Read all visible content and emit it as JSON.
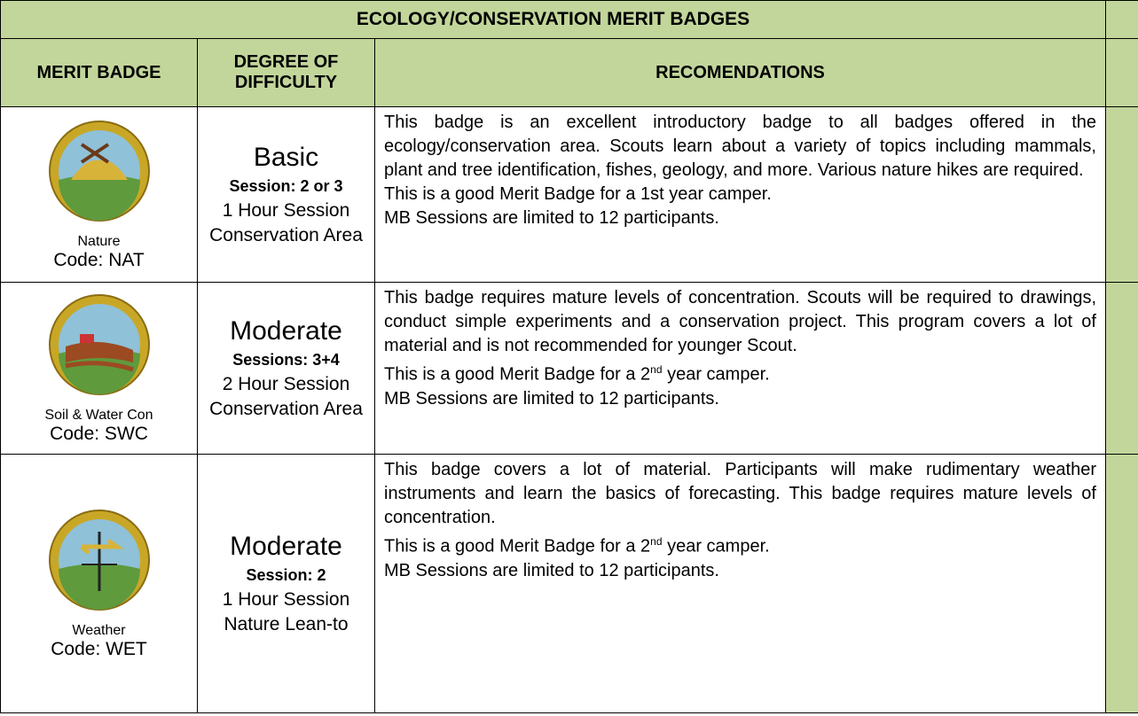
{
  "title": "ECOLOGY/CONSERVATION MERIT BADGES",
  "header": [
    "MERIT BADGE",
    "DEGREE OF DIFFICULTY",
    "RECOMENDATIONS"
  ],
  "rows": [
    {
      "badge": "Nature",
      "code": "Code: NAT",
      "difficulty": "Basic",
      "session": "Session: 2 or 3",
      "duration": "1 Hour Session",
      "location": "Conservation Area",
      "paragraph": "This badge is an excellent introductory badge to all badges offered in the ecology/conservation area. Scouts learn about a variety of topics including mammals, plant and tree identification, fishes, geology, and more. Various nature hikes are required.",
      "camper": [
        {
          "text": "This is a good Merit Badge for a 1st year camper."
        }
      ],
      "limit": "MB Sessions are limited to 12 participants."
    },
    {
      "badge": "Soil & Water Con",
      "code": "Code: SWC",
      "difficulty": "Moderate",
      "session": "Sessions: 3+4",
      "duration": "2 Hour Session",
      "location": "Conservation Area",
      "paragraph": "This badge requires mature levels of concentration. Scouts will be required to drawings, conduct simple experiments and a conservation project.  This program covers a lot of material and is not recommended for younger Scout.",
      "camper": [
        {
          "text": "This is a good Merit Badge for a 2"
        },
        {
          "text": "nd",
          "sup": true
        },
        {
          "text": " year camper."
        }
      ],
      "limit": "MB Sessions are limited to 12 participants."
    },
    {
      "badge": "Weather",
      "code": "Code: WET",
      "difficulty": "Moderate",
      "session": "Session: 2",
      "duration": "1 Hour Session",
      "location": "Nature Lean-to",
      "paragraph": "This badge covers a lot of material.  Participants will make rudimentary weather instruments and learn the basics of forecasting. This badge requires mature levels of concentration.",
      "camper": [
        {
          "text": "This is a good Merit Badge for a 2"
        },
        {
          "text": "nd",
          "sup": true
        },
        {
          "text": " year camper."
        }
      ],
      "limit": "MB Sessions are limited to 12 participants."
    }
  ]
}
